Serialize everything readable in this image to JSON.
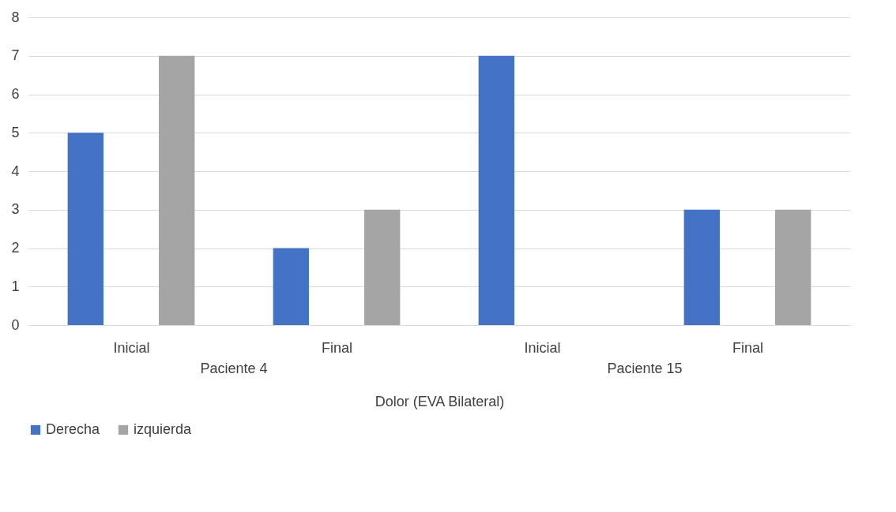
{
  "chart_data": {
    "type": "bar",
    "categories": [
      "Inicial",
      "Final",
      "Inicial",
      "Final"
    ],
    "series": [
      {
        "name": "Derecha",
        "color": "#4472c4",
        "values": [
          5,
          2,
          7,
          3
        ]
      },
      {
        "name": "izquierda",
        "color": "#a5a5a5",
        "values": [
          7,
          3,
          0,
          3
        ]
      }
    ],
    "xlabel": "Dolor (EVA Bilateral)",
    "annotations": [
      "Paciente 4",
      "Paciente 15"
    ],
    "ylim": [
      0,
      8
    ],
    "yticks": [
      0,
      1,
      2,
      3,
      4,
      5,
      6,
      7,
      8
    ],
    "grid": "y",
    "legend": "bottom"
  }
}
